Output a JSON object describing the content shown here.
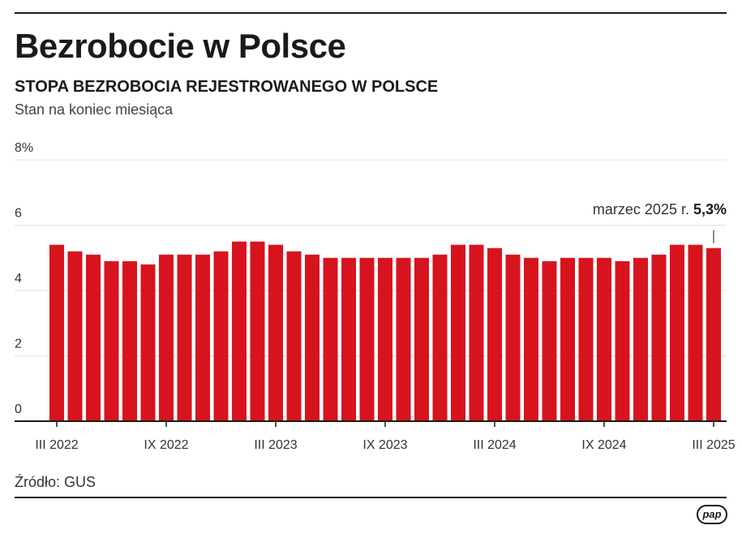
{
  "header": {
    "title": "Bezrobocie w Polsce",
    "subtitle": "STOPA BEZROBOCIA REJESTROWANEGO W POLSCE",
    "note": "Stan na koniec miesiąca"
  },
  "footer": {
    "source": "Źródło: GUS",
    "logo": "pap"
  },
  "chart_data": {
    "type": "bar",
    "title": "STOPA BEZROBOCIA REJESTROWANEGO W POLSCE",
    "subtitle": "Stan na koniec miesiąca",
    "xlabel": "",
    "ylabel": "",
    "ylim": [
      0,
      8
    ],
    "y_ticks": [
      "0",
      "2",
      "4",
      "6",
      "8%"
    ],
    "y_tick_values": [
      0,
      2,
      4,
      6,
      8
    ],
    "grid": true,
    "bar_color": "#d7141e",
    "categories": [
      "III 2022",
      "IV 2022",
      "V 2022",
      "VI 2022",
      "VII 2022",
      "VIII 2022",
      "IX 2022",
      "X 2022",
      "XI 2022",
      "XII 2022",
      "I 2023",
      "II 2023",
      "III 2023",
      "IV 2023",
      "V 2023",
      "VI 2023",
      "VII 2023",
      "VIII 2023",
      "IX 2023",
      "X 2023",
      "XI 2023",
      "XII 2023",
      "I 2024",
      "II 2024",
      "III 2024",
      "IV 2024",
      "V 2024",
      "VI 2024",
      "VII 2024",
      "VIII 2024",
      "IX 2024",
      "X 2024",
      "XI 2024",
      "XII 2024",
      "I 2025",
      "II 2025",
      "III 2025"
    ],
    "values": [
      5.4,
      5.2,
      5.1,
      4.9,
      4.9,
      4.8,
      5.1,
      5.1,
      5.1,
      5.2,
      5.5,
      5.5,
      5.4,
      5.2,
      5.1,
      5.0,
      5.0,
      5.0,
      5.0,
      5.0,
      5.0,
      5.1,
      5.4,
      5.4,
      5.3,
      5.1,
      5.0,
      4.9,
      5.0,
      5.0,
      5.0,
      4.9,
      5.0,
      5.1,
      5.4,
      5.4,
      5.3
    ],
    "x_tick_labels": [
      {
        "index": 0,
        "label": "III 2022"
      },
      {
        "index": 6,
        "label": "IX 2022"
      },
      {
        "index": 12,
        "label": "III 2023"
      },
      {
        "index": 18,
        "label": "IX 2023"
      },
      {
        "index": 24,
        "label": "III 2024"
      },
      {
        "index": 30,
        "label": "IX 2024"
      },
      {
        "index": 36,
        "label": "III 2025"
      }
    ],
    "annotation": {
      "index": 36,
      "text": "marzec 2025 r.",
      "value_text": "5,3%"
    }
  }
}
